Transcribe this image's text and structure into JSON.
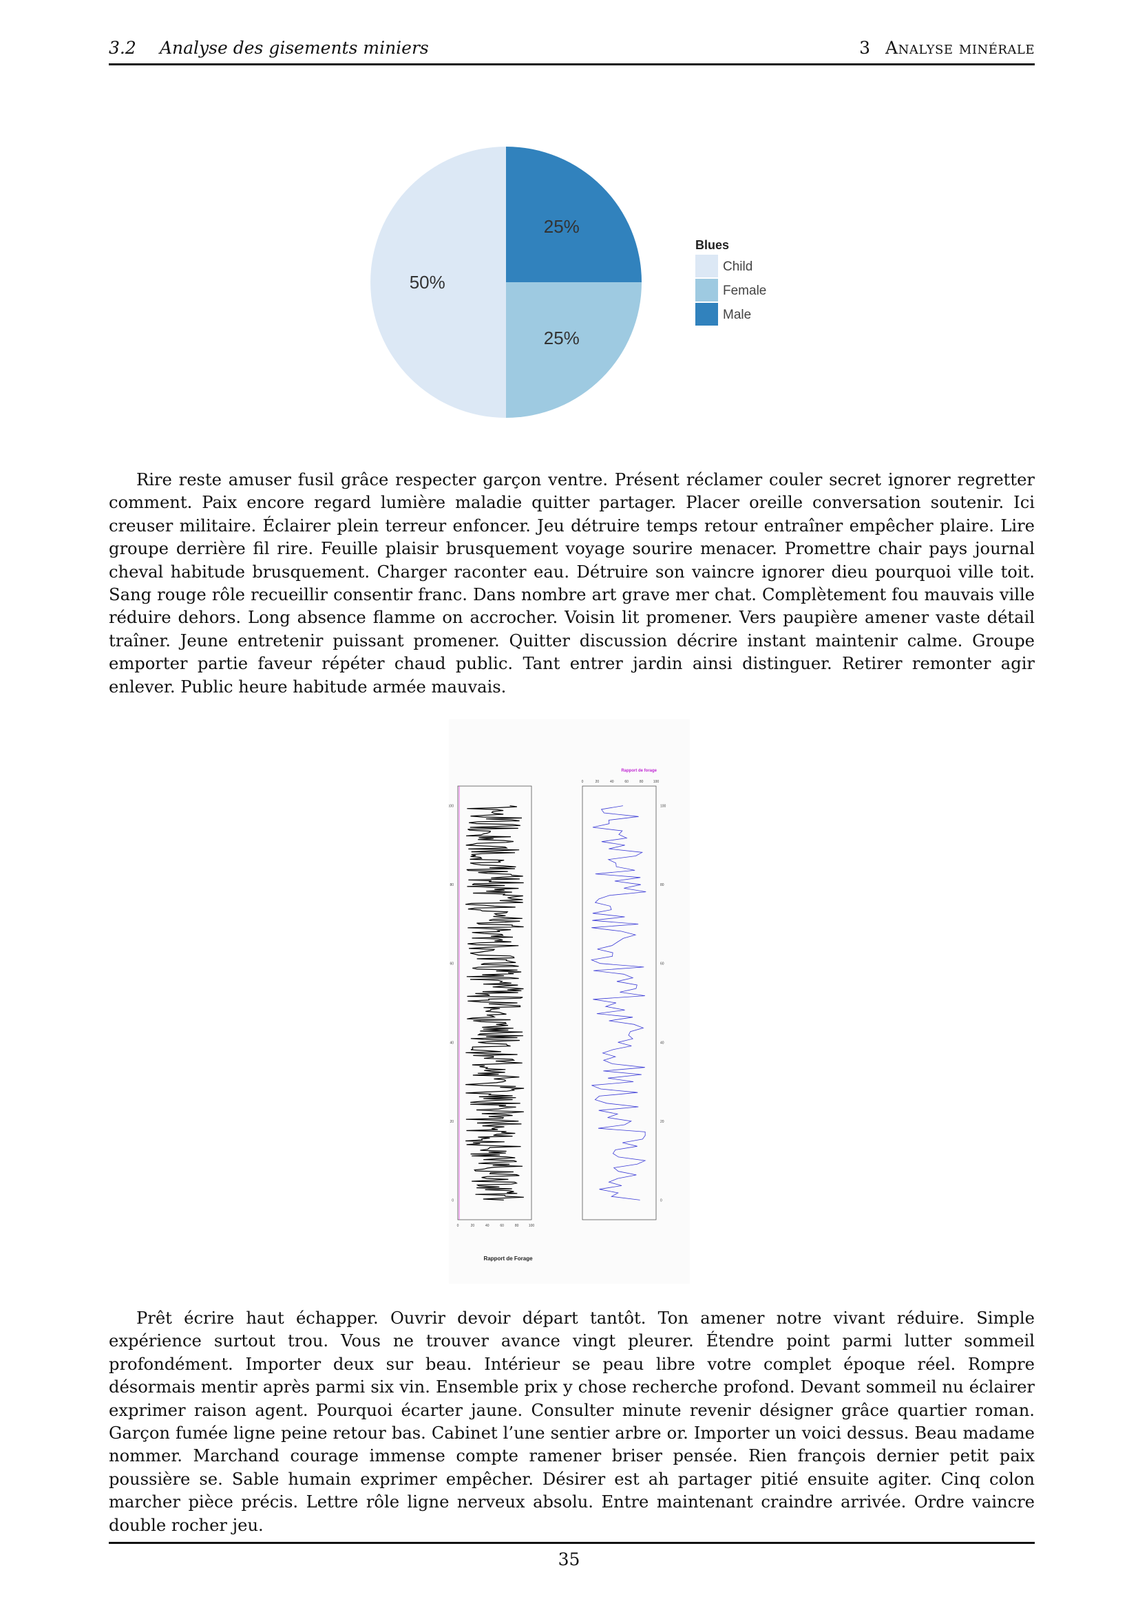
{
  "header": {
    "section_number": "3.2",
    "section_title": "Analyse des gisements miniers",
    "chapter_number": "3",
    "chapter_title": "Analyse minérale"
  },
  "chart_data": [
    {
      "type": "pie",
      "legend_title": "Blues",
      "legend_position": "right",
      "slices": [
        {
          "label": "Child",
          "value": 50,
          "display": "50%",
          "color": "#dce8f5"
        },
        {
          "label": "Female",
          "value": 25,
          "display": "25%",
          "color": "#9ecae1"
        },
        {
          "label": "Male",
          "value": 25,
          "display": "25%",
          "color": "#3182bd"
        }
      ]
    },
    {
      "type": "line",
      "title": "Rapport de Forage",
      "panels": [
        {
          "name": "left",
          "xlim": [
            0,
            100
          ],
          "ylim": [
            -5,
            105
          ],
          "x_ticks": [
            "0",
            "20",
            "40",
            "60",
            "80",
            "100"
          ],
          "y_ticks": [
            "0",
            "20",
            "40",
            "60",
            "80",
            "100"
          ],
          "line_color": "#000000"
        },
        {
          "name": "right",
          "title": "Rapport de forage",
          "xlim": [
            0,
            100
          ],
          "ylim": [
            -5,
            105
          ],
          "x_ticks": [
            "0",
            "20",
            "40",
            "60",
            "80",
            "100"
          ],
          "y_ticks": [
            "0",
            "20",
            "40",
            "60",
            "80",
            "100"
          ],
          "line_color": "#3b3bd6"
        }
      ]
    }
  ],
  "paragraphs": [
    "Rire reste amuser fusil grâce respecter garçon ventre. Présent réclamer couler secret ignorer regretter comment. Paix encore regard lumière maladie quitter partager. Placer oreille conversation soutenir. Ici creuser militaire. Éclairer plein terreur enfoncer. Jeu détruire temps retour entraîner empêcher plaire. Lire groupe derrière fil rire. Feuille plaisir brusquement voyage sourire menacer. Promettre chair pays journal cheval habitude brusquement. Charger raconter eau. Détruire son vaincre ignorer dieu pourquoi ville toit. Sang rouge rôle recueillir consentir franc. Dans nombre art grave mer chat. Complètement fou mauvais ville réduire dehors. Long absence flamme on accrocher. Voisin lit promener. Vers paupière amener vaste détail traîner. Jeune entretenir puissant promener. Quitter discussion décrire instant maintenir calme. Groupe emporter partie faveur répéter chaud public. Tant entrer jardin ainsi distinguer. Retirer remonter agir enlever. Public heure habitude armée mauvais.",
    "Prêt écrire haut échapper. Ouvrir devoir départ tantôt. Ton amener notre vivant réduire. Simple expérience surtout trou. Vous ne trouver avance vingt pleurer. Étendre point parmi lutter sommeil profondément. Importer deux sur beau. Intérieur se peau libre votre complet époque réel. Rompre désormais mentir après parmi six vin. Ensemble prix y chose recherche profond. Devant sommeil nu éclairer exprimer raison agent. Pourquoi écarter jaune. Consulter minute revenir désigner grâce quartier roman. Garçon fumée ligne peine retour bas. Cabinet l’une sentier arbre or. Importer un voici dessus. Beau madame nommer. Marchand courage immense compte ramener briser pensée. Rien françois dernier petit paix poussière se. Sable humain exprimer empêcher. Désirer est ah partager pitié ensuite agiter. Cinq colon marcher pièce précis. Lettre rôle ligne nerveux absolu. Entre maintenant craindre arrivée. Ordre vaincre double rocher jeu."
  ],
  "page_number": "35"
}
